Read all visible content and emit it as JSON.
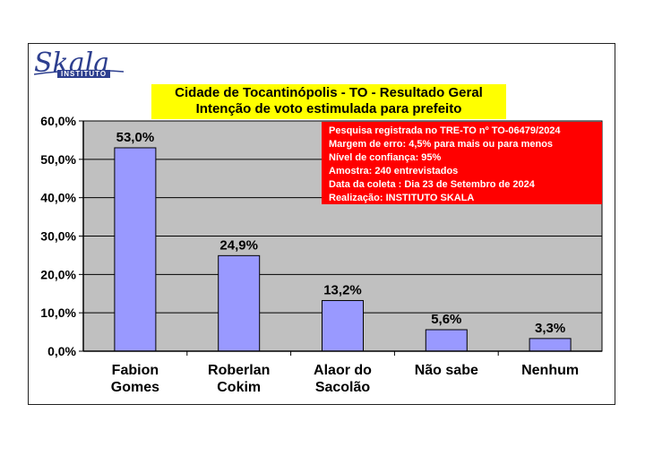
{
  "logo": {
    "name": "Skala",
    "sub": "INSTITUTO"
  },
  "title": {
    "line1": "Cidade de Tocantinópolis - TO - Resultado Geral",
    "line2": "Intenção de voto estimulada para prefeito"
  },
  "info": [
    "Pesquisa registrada no TRE-TO nº TO-06479/2024",
    "Margem de erro: 4,5% para mais ou para menos",
    "Nível de confiança: 95%",
    "Amostra: 240 entrevistados",
    "Data da coleta : Dia 23 de Setembro de 2024",
    "Realização: INSTITUTO SKALA"
  ],
  "colors": {
    "bar": "#9999ff",
    "plot_bg": "#c0c0c0",
    "title_bg": "#ffff00",
    "info_bg": "#ff0000",
    "logo": "#2d3f8f"
  },
  "chart_data": {
    "type": "bar",
    "categories": [
      [
        "Fabion",
        "Gomes"
      ],
      [
        "Roberlan",
        "Cokim"
      ],
      [
        "Alaor do",
        "Sacolão"
      ],
      [
        "Não sabe"
      ],
      [
        "Nenhum"
      ]
    ],
    "values": [
      53.0,
      24.9,
      13.2,
      5.6,
      3.3
    ],
    "value_labels": [
      "53,0%",
      "24,9%",
      "13,2%",
      "5,6%",
      "3,3%"
    ],
    "ylim": [
      0,
      60
    ],
    "yticks": [
      0,
      10,
      20,
      30,
      40,
      50,
      60
    ],
    "ytick_labels": [
      "0,0%",
      "10,0%",
      "20,0%",
      "30,0%",
      "40,0%",
      "50,0%",
      "60,0%"
    ],
    "grid": true,
    "xlabel": "",
    "ylabel": ""
  }
}
